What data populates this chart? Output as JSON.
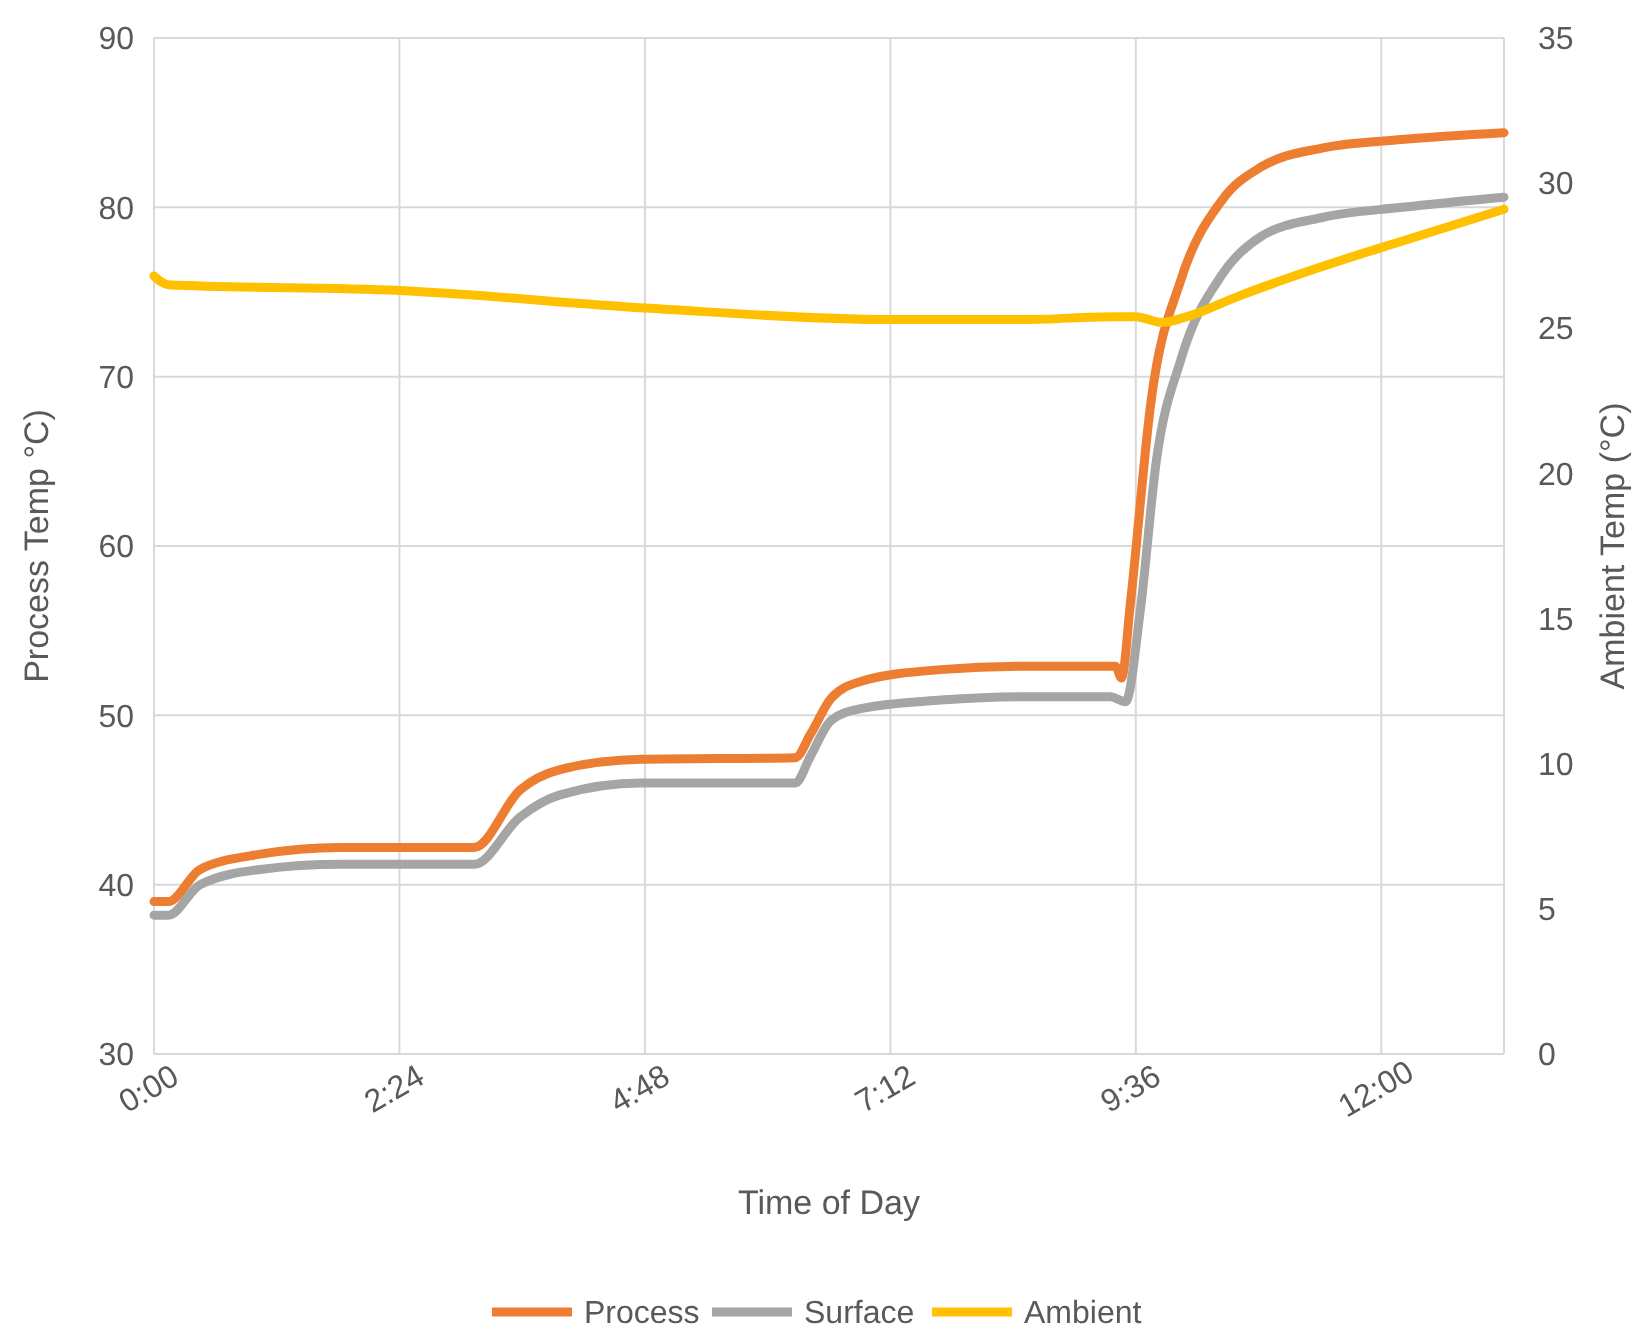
{
  "chart_data": {
    "type": "line",
    "xlabel": "Time of Day",
    "ylabel": "Process Temp °C)",
    "y2label": "Ambient Temp (°C)",
    "xlim": [
      0,
      13.2
    ],
    "xticks": [
      {
        "value": 0,
        "label": "0:00"
      },
      {
        "value": 2.4,
        "label": "2:24"
      },
      {
        "value": 4.8,
        "label": "4:48"
      },
      {
        "value": 7.2,
        "label": "7:12"
      },
      {
        "value": 9.6,
        "label": "9:36"
      },
      {
        "value": 12,
        "label": "12:00"
      }
    ],
    "ylim": [
      30,
      90
    ],
    "yticks": [
      30,
      40,
      50,
      60,
      70,
      80,
      90
    ],
    "y2lim": [
      0,
      35
    ],
    "y2ticks": [
      0,
      5,
      10,
      15,
      20,
      25,
      30,
      35
    ],
    "grid": true,
    "legend": "bottom",
    "line_style": "solid",
    "marker": "none",
    "series": [
      {
        "name": "Process",
        "color": "#ed7d31",
        "x": [
          0,
          0.14,
          0.45,
          1.04,
          1.82,
          3.13,
          3.58,
          3.97,
          4.76,
          6.27,
          6.42,
          6.62,
          6.91,
          7.69,
          8.48,
          9.4,
          9.46,
          9.55,
          9.75,
          10.04,
          10.44,
          10.83,
          11.42,
          12.2,
          13.2
        ],
        "values": [
          39,
          39,
          40.9,
          41.8,
          42.2,
          42.2,
          45.6,
          46.8,
          47.4,
          47.5,
          48.9,
          51,
          52,
          52.7,
          52.9,
          52.9,
          52.2,
          56.8,
          68.6,
          75.7,
          80.4,
          82.4,
          83.5,
          84,
          84.4
        ]
      },
      {
        "name": "Surface",
        "color": "#a5a5a5",
        "x": [
          0,
          0.14,
          0.45,
          1.04,
          1.82,
          3.13,
          3.58,
          3.97,
          4.76,
          6.27,
          6.42,
          6.62,
          6.91,
          7.69,
          8.48,
          9.35,
          9.5,
          9.64,
          9.8,
          10.04,
          10.44,
          10.83,
          11.42,
          12.2,
          13.2
        ],
        "values": [
          38.2,
          38.2,
          40,
          40.9,
          41.2,
          41.2,
          44,
          45.3,
          46,
          46,
          47.6,
          49.7,
          50.4,
          50.9,
          51.1,
          51.1,
          50.8,
          56,
          65,
          71,
          76,
          78.3,
          79.4,
          80,
          80.6
        ]
      },
      {
        "name": "Ambient",
        "color": "#ffc000",
        "axis": "y2",
        "x": [
          0,
          0.14,
          2.4,
          4.8,
          7.2,
          8.5,
          9.4,
          9.6,
          9.85,
          10.1,
          10.6,
          11.4,
          12.2,
          13.2
        ],
        "values": [
          26.8,
          26.5,
          26.3,
          25.7,
          25.3,
          25.3,
          25.4,
          25.4,
          25.2,
          25.4,
          26.1,
          27.1,
          28,
          29.1
        ]
      }
    ]
  }
}
